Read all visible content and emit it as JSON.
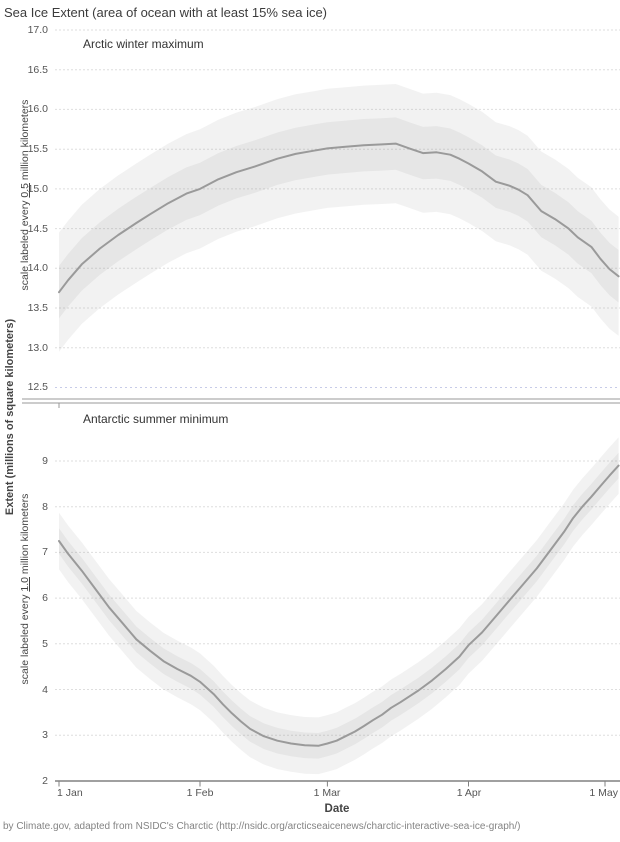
{
  "title": "Sea Ice Extent (area of ocean with at least 15% sea ice)",
  "caption": "by Climate.gov, adapted from NSIDC's Charctic (http://nsidc.org/arcticseaicenews/charctic-interactive-sea-ice-graph/)",
  "axis": {
    "x_label": "Date",
    "y_outer_label": "Extent (millions of square kilometers)",
    "x_tick_labels": [
      "1 Jan",
      "1 Feb",
      "1 Mar",
      "1 Apr",
      "1 May"
    ],
    "x_tick_days": [
      0,
      31,
      59,
      90,
      120
    ]
  },
  "colors": {
    "background": "#ffffff",
    "curve": "#9a9a9a",
    "band_fill": "rgba(130,130,130,0.10)",
    "grid": "#dedede",
    "grid_special": "#c7cbe8",
    "axis_line": "#818181",
    "divider": "#999999",
    "text": "#444444",
    "muted_text": "#848484"
  },
  "chart_data": [
    {
      "type": "line",
      "title": "Arctic winter maximum",
      "scale_label": {
        "prefix": "scale labeled every ",
        "underlined": "0.5",
        "suffix": " million kilometers"
      },
      "x_unit": "days since 1 Jan",
      "xlim": [
        0,
        123.3
      ],
      "ylim": [
        12.5,
        17.0
      ],
      "yticks": [
        "17.0",
        "16.5",
        "16.0",
        "15.5",
        "15.0",
        "14.5",
        "14.0",
        "13.5",
        "13.0",
        "12.5"
      ],
      "special_gridline": 12.5,
      "x": [
        0,
        2,
        5,
        9,
        13,
        17,
        20,
        24,
        28,
        31,
        35,
        39,
        43,
        48,
        52,
        56,
        59,
        63,
        67,
        71,
        74,
        77,
        80,
        83,
        86,
        88,
        90,
        93,
        96,
        99,
        101,
        103,
        106,
        109,
        112,
        114,
        117,
        119,
        121,
        123
      ],
      "values": [
        13.7,
        13.85,
        14.05,
        14.25,
        14.42,
        14.57,
        14.68,
        14.82,
        14.94,
        15.0,
        15.12,
        15.21,
        15.28,
        15.38,
        15.44,
        15.48,
        15.51,
        15.53,
        15.55,
        15.56,
        15.57,
        15.51,
        15.45,
        15.46,
        15.43,
        15.38,
        15.32,
        15.22,
        15.09,
        15.04,
        14.99,
        14.92,
        14.72,
        14.62,
        14.5,
        14.39,
        14.27,
        14.12,
        13.99,
        13.9
      ],
      "band_inner_halfwidth": 0.33,
      "band_outer_halfwidth": 0.75
    },
    {
      "type": "line",
      "title": "Antarctic summer minimum",
      "scale_label": {
        "prefix": "scale labeled every ",
        "underlined": "1.0",
        "suffix": " million kilometers"
      },
      "x_unit": "days since 1 Jan",
      "xlim": [
        0,
        123.3
      ],
      "ylim": [
        2,
        9
      ],
      "yticks": [
        "9",
        "8",
        "7",
        "6",
        "5",
        "4",
        "3",
        "2"
      ],
      "special_gridline": null,
      "x": [
        0,
        2,
        5,
        8,
        11,
        14,
        17,
        20,
        23,
        26,
        29,
        31,
        34,
        36,
        38,
        40,
        42,
        45,
        48,
        51,
        54,
        57,
        59,
        61,
        63,
        65,
        67,
        69,
        71,
        73,
        75,
        77,
        79,
        82,
        85,
        88,
        90,
        93,
        96,
        99,
        102,
        105,
        108,
        111,
        113,
        115,
        117,
        119,
        121,
        123
      ],
      "values": [
        7.25,
        6.97,
        6.6,
        6.2,
        5.8,
        5.45,
        5.1,
        4.85,
        4.62,
        4.45,
        4.3,
        4.17,
        3.9,
        3.68,
        3.48,
        3.3,
        3.14,
        2.98,
        2.88,
        2.82,
        2.78,
        2.77,
        2.82,
        2.88,
        2.98,
        3.08,
        3.2,
        3.33,
        3.45,
        3.6,
        3.72,
        3.85,
        3.98,
        4.2,
        4.45,
        4.72,
        4.97,
        5.25,
        5.6,
        5.95,
        6.3,
        6.65,
        7.05,
        7.45,
        7.75,
        8.0,
        8.22,
        8.45,
        8.68,
        8.9
      ],
      "band_inner_halfwidth": 0.28,
      "band_outer_halfwidth": 0.62
    }
  ]
}
